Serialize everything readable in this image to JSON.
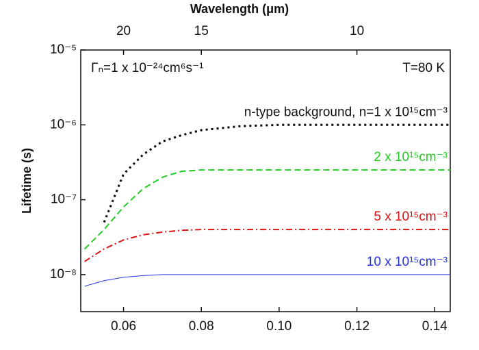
{
  "chart_data": {
    "type": "line",
    "y_label": "Lifetime (s)",
    "x2_label": "Wavelength (μm)",
    "annotations": [
      "Γₙ=1 x 10⁻²⁴cm⁶s⁻¹",
      "T=80 K"
    ],
    "log_y": true,
    "xlim": [
      0.049,
      0.144
    ],
    "ylim": [
      3.2e-09,
      1e-05
    ],
    "xticks": [
      0.06,
      0.08,
      {
        "value": 0.1,
        "label": "0.10"
      },
      0.12,
      0.14
    ],
    "yticks": [
      {
        "value": 1e-08,
        "label": "10⁻⁸"
      },
      {
        "value": 1e-07,
        "label": "10⁻⁷"
      },
      {
        "value": 1e-06,
        "label": "10⁻⁶"
      },
      {
        "value": 1e-05,
        "label": "10⁻⁵"
      }
    ],
    "x2ticks": [
      {
        "value": 0.06,
        "label": "20"
      },
      {
        "value": 0.08,
        "label": "15"
      },
      {
        "value": 0.12,
        "label": "10"
      }
    ],
    "x": [
      0.05,
      0.055,
      0.06,
      0.065,
      0.07,
      0.075,
      0.08,
      0.09,
      0.1,
      0.12,
      0.144
    ],
    "series": [
      {
        "name": "n-type background, n=1 x 10¹⁵cm⁻³",
        "color": "#000000",
        "style": "dotted",
        "values": [
          null,
          5e-08,
          2.2e-07,
          4e-07,
          6e-07,
          7.3e-07,
          8.5e-07,
          9.6e-07,
          1e-06,
          1e-06,
          1e-06
        ]
      },
      {
        "name": "2 x 10¹⁵cm⁻³",
        "color": "#22cc22",
        "style": "dashed",
        "values": [
          2.2e-08,
          4e-08,
          8e-08,
          1.4e-07,
          2e-07,
          2.4e-07,
          2.5e-07,
          2.5e-07,
          2.5e-07,
          2.5e-07,
          2.5e-07
        ]
      },
      {
        "name": "5 x 10¹⁵cm⁻³",
        "color": "#dd1111",
        "style": "dashdot",
        "values": [
          1.5e-08,
          2.2e-08,
          2.9e-08,
          3.4e-08,
          3.7e-08,
          3.9e-08,
          4e-08,
          4e-08,
          4e-08,
          4e-08,
          4e-08
        ]
      },
      {
        "name": "10 x 10¹⁵cm⁻³",
        "color": "#2233dd",
        "style": "solid",
        "values": [
          7e-09,
          8.3e-09,
          9.2e-09,
          9.7e-09,
          1e-08,
          1e-08,
          1e-08,
          1e-08,
          1e-08,
          1e-08,
          1e-08
        ]
      }
    ]
  }
}
